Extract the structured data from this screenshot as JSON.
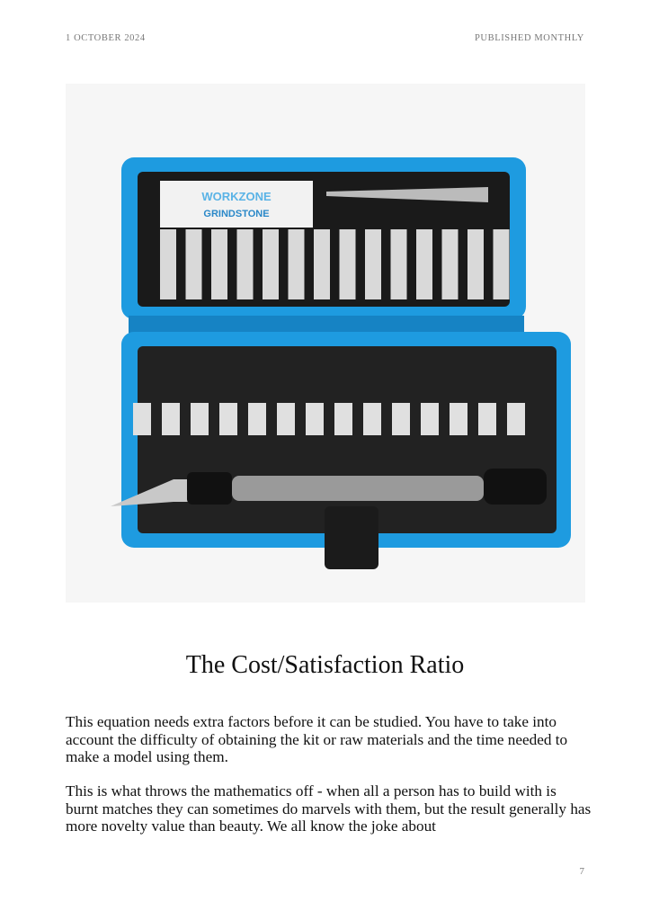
{
  "header": {
    "date": "1 OCTOBER 2024",
    "frequency": "PUBLISHED MONTHLY"
  },
  "photo": {
    "subject": "hobby knife blade set in blue case",
    "logo_text": [
      "WORKZONE",
      "GRINDSTONE"
    ],
    "case_color": "#1e9be0"
  },
  "article": {
    "title": "The Cost/Satisfaction Ratio",
    "paragraphs": [
      "This equation needs extra factors before it can be studied. You have to take into account the difficulty of obtaining the kit or raw materials and the time needed to make a model using them.",
      "This is what throws the mathematics off - when all a person has to build with is burnt matches they can sometimes do marvels with them, but the result generally has more novelty value than beauty. We all know the joke about"
    ]
  },
  "footer": {
    "page_number": "7"
  }
}
